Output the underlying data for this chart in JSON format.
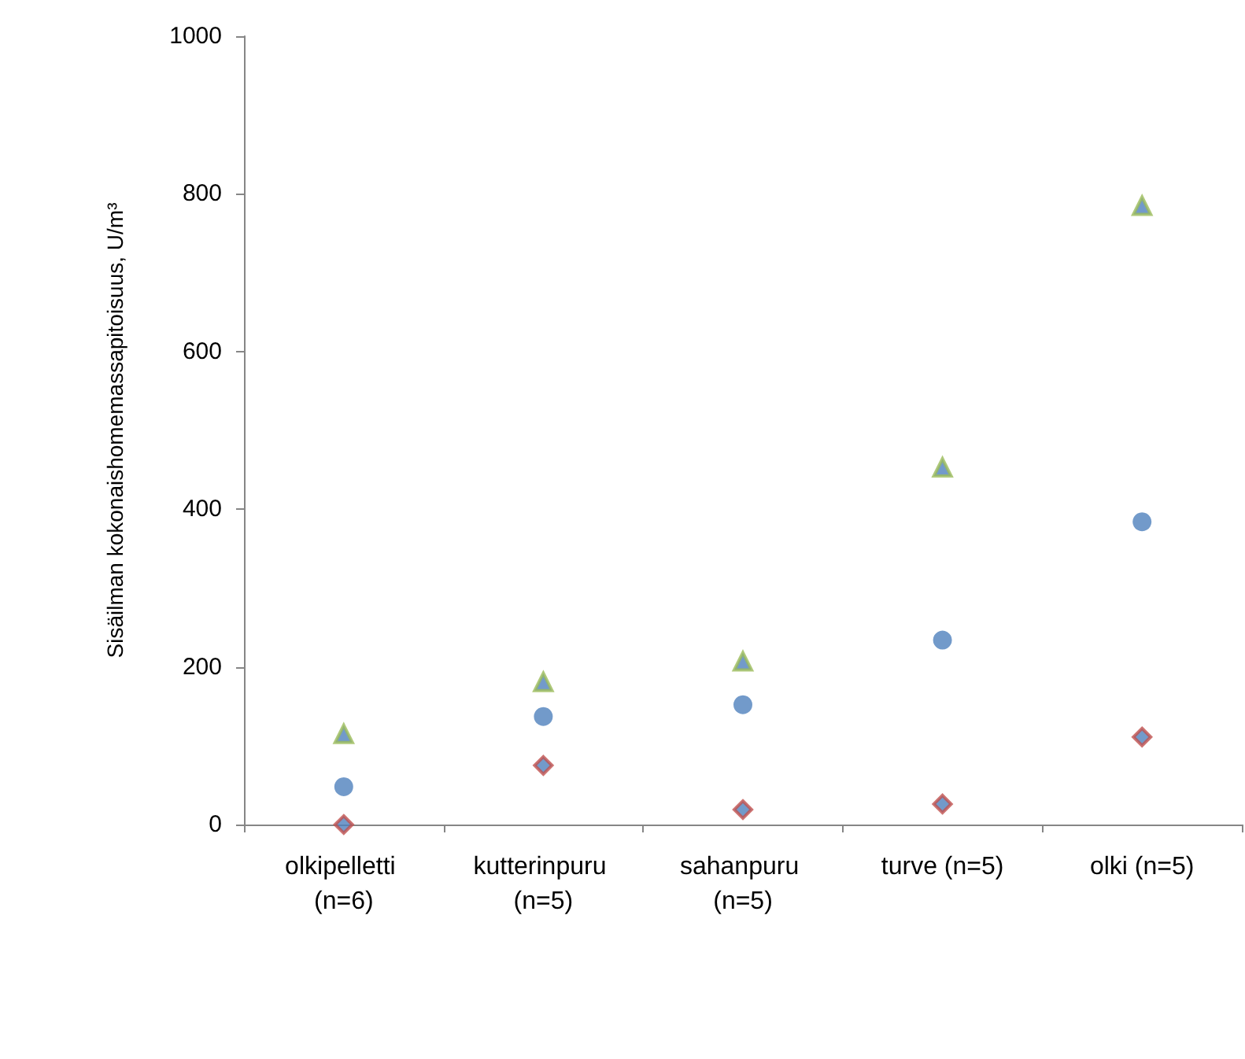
{
  "chart_data": {
    "type": "scatter",
    "ylabel": "Sisäilman kokonaishomemassapitoisuus, U/m³",
    "categories": [
      "olkipelletti (n=6)",
      "kutterinpuru (n=5)",
      "sahanpuru (n=5)",
      "turve (n=5)",
      "olki (n=5)"
    ],
    "series": [
      {
        "color": "#9bbb59",
        "marker": "triangle",
        "values": [
          115,
          181,
          207,
          453,
          785
        ]
      },
      {
        "color": "#4f81bd",
        "marker": "circle",
        "values": [
          48,
          137,
          152,
          234,
          384
        ]
      },
      {
        "color": "#c0504d",
        "marker": "diamond",
        "values": [
          0,
          75,
          19,
          26,
          111
        ]
      }
    ],
    "ylim": [
      0,
      1000
    ],
    "yticks": [
      0,
      200,
      400,
      600,
      800,
      1000
    ],
    "grid": false
  }
}
